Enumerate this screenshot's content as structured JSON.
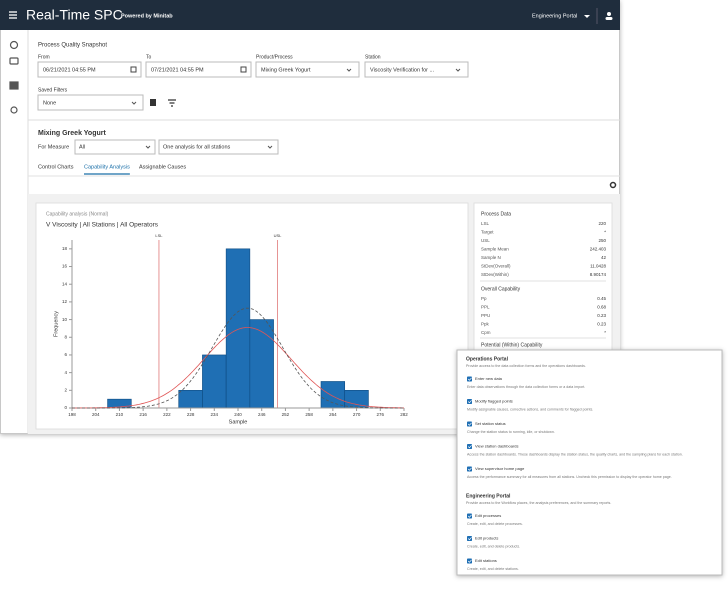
{
  "header": {
    "title": "Real-Time SPC",
    "powered_by": "Powered by Minitab",
    "portal": "Engineering Portal"
  },
  "filters": {
    "heading": "Process Quality Snapshot",
    "fields": [
      {
        "label": "From",
        "value": "06/21/2021 04:55 PM"
      },
      {
        "label": "To",
        "value": "07/21/2021 04:55 PM"
      },
      {
        "label": "Product/Process",
        "value": "Mixing Greek Yogurt"
      },
      {
        "label": "Station",
        "value": "Viscosity Verification for ..."
      }
    ],
    "saved_filters": {
      "label": "Saved Filters",
      "value": "None"
    }
  },
  "analysis": {
    "title": "Mixing Greek Yogurt",
    "measure_label": "For Measure",
    "measure": "All",
    "mode": "One analysis for all stations"
  },
  "tabs": {
    "items": [
      "Control Charts",
      "Capability Analysis",
      "Assignable Causes"
    ],
    "active": 1
  },
  "chart_data": {
    "type": "histogram",
    "title": "Capability analysis (Normal)",
    "subtitle": "V Viscosity | All Stations | All Operators",
    "x_label": "Sample",
    "y_label": "Frequency",
    "bins": [
      207,
      213,
      219,
      225,
      231,
      237,
      243,
      249,
      255,
      261,
      267,
      273
    ],
    "values": [
      1,
      0,
      0,
      2,
      6,
      18,
      10,
      0,
      0,
      3,
      2
    ],
    "color": "#1f6fb4",
    "xlim": [
      198,
      282
    ],
    "xticks": [
      198,
      204,
      210,
      216,
      222,
      228,
      234,
      240,
      246,
      252,
      258,
      264,
      270,
      276,
      282
    ],
    "ylim": [
      0,
      19
    ],
    "yticks": [
      0,
      2,
      4,
      6,
      8,
      10,
      12,
      14,
      16,
      18
    ],
    "spec_limits": [
      {
        "value": 220,
        "label": "LSL"
      },
      {
        "value": 250,
        "label": "USL"
      }
    ]
  },
  "process_data": {
    "title": "Process Data",
    "rows": [
      {
        "label": "LSL",
        "value": 220
      },
      {
        "label": "Target",
        "value": "*"
      },
      {
        "label": "USL",
        "value": 250
      },
      {
        "label": "Sample Mean",
        "value": 242.403
      },
      {
        "label": "Sample N",
        "value": 42
      },
      {
        "label": "StDev(Overall)",
        "value": 11.0428
      },
      {
        "label": "StDev(Within)",
        "value": 8.90174
      }
    ]
  },
  "overall_capability": {
    "title": "Overall Capability",
    "rows": [
      {
        "label": "Pp",
        "value": 0.45
      },
      {
        "label": "PPL",
        "value": 0.68
      },
      {
        "label": "PPU",
        "value": 0.23
      },
      {
        "label": "Ppk",
        "value": 0.23
      },
      {
        "label": "Cpm",
        "value": "*"
      }
    ]
  },
  "potential_capability": {
    "title": "Potential (Within) Capability"
  },
  "permissions": {
    "sections": [
      {
        "title": "Operations Portal",
        "description": "Provide access to the data collection forms and the operations dashboards.",
        "items": [
          {
            "label": "Enter new data",
            "description": "Enter data observations through the data collection forms or a data import."
          },
          {
            "label": "Modify flagged points",
            "description": "Modify assignable causes, corrective actions, and comments for flagged points."
          },
          {
            "label": "Set station status",
            "description": "Change the station status to running, idle, or shutdown."
          },
          {
            "label": "View station dashboards",
            "description": "Access the station dashboards. These dashboards display the station status, the quality charts, and the sampling plans for each station."
          },
          {
            "label": "View supervisor home page",
            "description": "Access the performance summary for all measures from all stations. Uncheck this permission to display the operator home page."
          }
        ]
      },
      {
        "title": "Engineering Portal",
        "description": "Provide access to the Workflow places, the analysis preferences, and the summary reports.",
        "items": [
          {
            "label": "Edit processes",
            "description": "Create, edit, and delete processes."
          },
          {
            "label": "Edit products",
            "description": "Create, edit, and delete products."
          },
          {
            "label": "Edit stations",
            "description": "Create, edit, and delete stations."
          }
        ]
      }
    ]
  }
}
